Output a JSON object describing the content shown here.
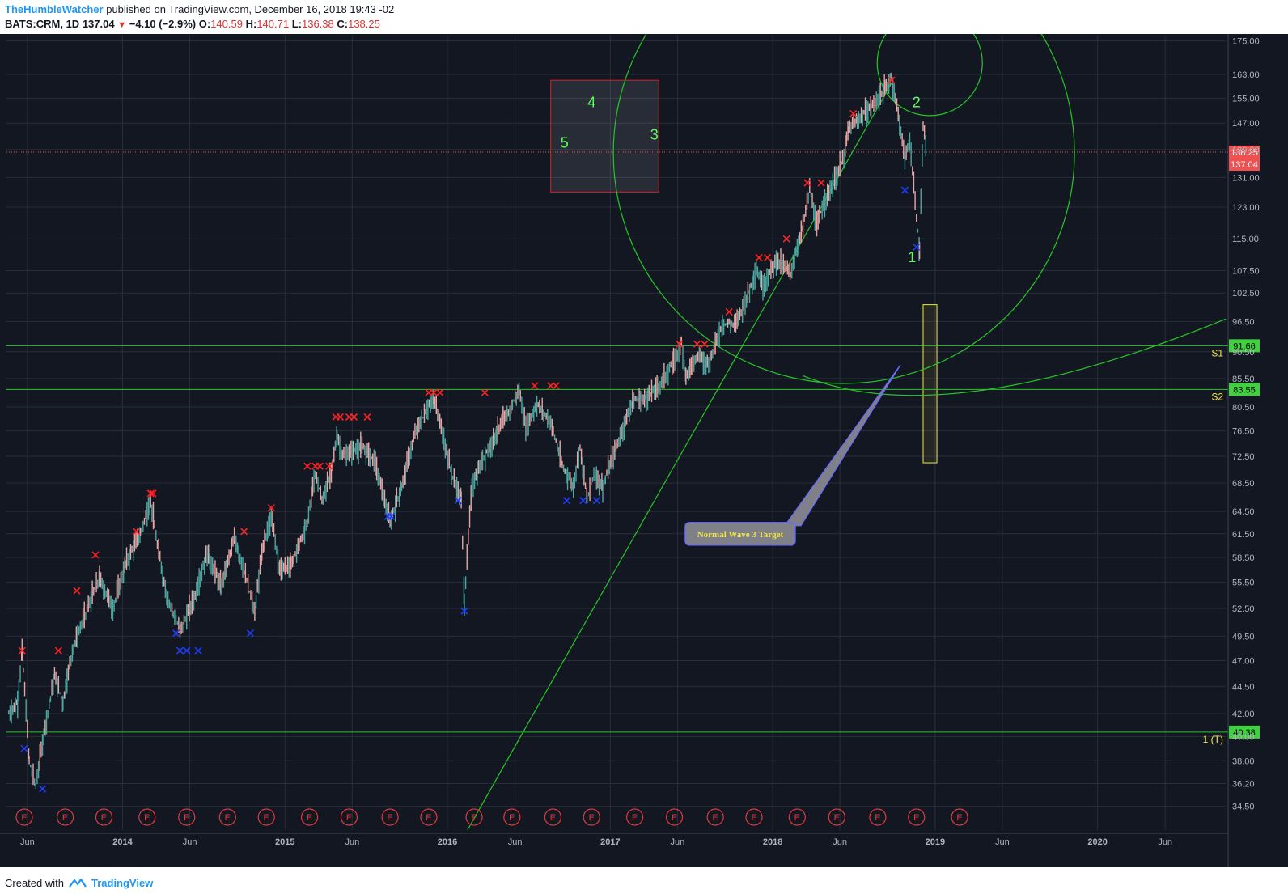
{
  "header": {
    "user": "TheHumbleWatcher",
    "published": "published on TradingView.com, December 16, 2018 19:43 -02",
    "symbol": "BATS:CRM, 1D",
    "last": "137.04",
    "change": "−4.10 (−2.9%)",
    "open_label": "O:",
    "open": "140.59",
    "high_label": "H:",
    "high": "140.71",
    "low_label": "L:",
    "low": "136.38",
    "close_label": "C:",
    "close": "138.25"
  },
  "footer": {
    "created_with": "Created with",
    "brand": "TradingView"
  },
  "colors": {
    "bg": "#131722",
    "grid": "#2a2e39",
    "up": "#4ea6a0",
    "down": "#e6a6a6",
    "green_line": "#26c726",
    "red_x": "#ff2222",
    "blue_x": "#1e3cff",
    "wave_label": "#5dff5d",
    "yellow": "#f0e642",
    "earnings": "#e03a3a",
    "price_tag_red": "#f05050",
    "level_tag_green": "#3fd23f"
  },
  "chart_data": {
    "type": "line",
    "title": "",
    "y_axis": {
      "scale": "log",
      "tick_labels": [
        "175.00",
        "163.00",
        "155.00",
        "147.00",
        "139.00",
        "131.00",
        "123.00",
        "115.00",
        "107.50",
        "102.50",
        "96.50",
        "90.50",
        "85.50",
        "80.50",
        "76.50",
        "72.50",
        "68.50",
        "64.50",
        "61.50",
        "58.50",
        "55.50",
        "52.50",
        "49.50",
        "47.00",
        "44.50",
        "42.00",
        "40.00",
        "38.00",
        "36.20",
        "34.50"
      ],
      "ylim": [
        32.8,
        177
      ]
    },
    "x_axis": {
      "tick_labels": [
        "Jun",
        "2014",
        "Jun",
        "2015",
        "Jun",
        "2016",
        "Jun",
        "2017",
        "Jun",
        "2018",
        "Jun",
        "2019",
        "Jun",
        "2020",
        "Jun"
      ],
      "tick_dates": [
        "2013-06-01",
        "2014-01-01",
        "2014-06-01",
        "2015-01-01",
        "2015-06-01",
        "2016-01-01",
        "2016-06-01",
        "2017-01-01",
        "2017-06-01",
        "2018-01-01",
        "2018-06-01",
        "2019-01-01",
        "2019-06-01",
        "2020-01-01",
        "2020-06-01"
      ],
      "xlim": [
        "2013-04-15",
        "2020-10-15"
      ]
    },
    "series": [
      {
        "kind": "price_path",
        "points": [
          [
            "2013-04-20",
            42.0
          ],
          [
            "2013-05-10",
            43.0
          ],
          [
            "2013-05-20",
            47.8
          ],
          [
            "2013-06-05",
            38.0
          ],
          [
            "2013-06-20",
            36.0
          ],
          [
            "2013-07-05",
            39.5
          ],
          [
            "2013-08-01",
            45.5
          ],
          [
            "2013-08-20",
            43.0
          ],
          [
            "2013-09-10",
            48.0
          ],
          [
            "2013-10-10",
            52.0
          ],
          [
            "2013-11-10",
            56.0
          ],
          [
            "2013-12-10",
            52.5
          ],
          [
            "2014-01-10",
            58.0
          ],
          [
            "2014-02-10",
            61.5
          ],
          [
            "2014-03-05",
            66.0
          ],
          [
            "2014-03-20",
            60.0
          ],
          [
            "2014-04-10",
            54.0
          ],
          [
            "2014-05-10",
            50.0
          ],
          [
            "2014-06-10",
            53.5
          ],
          [
            "2014-07-10",
            59.0
          ],
          [
            "2014-08-10",
            55.0
          ],
          [
            "2014-09-10",
            61.0
          ],
          [
            "2014-10-10",
            55.0
          ],
          [
            "2014-10-25",
            52.0
          ],
          [
            "2014-11-10",
            59.0
          ],
          [
            "2014-12-01",
            64.0
          ],
          [
            "2014-12-20",
            57.0
          ],
          [
            "2015-01-15",
            57.5
          ],
          [
            "2015-02-20",
            63.0
          ],
          [
            "2015-03-10",
            70.0
          ],
          [
            "2015-03-25",
            66.0
          ],
          [
            "2015-04-15",
            70.0
          ],
          [
            "2015-04-28",
            76.0
          ],
          [
            "2015-05-10",
            72.5
          ],
          [
            "2015-06-20",
            74.0
          ],
          [
            "2015-07-20",
            72.0
          ],
          [
            "2015-08-25",
            63.0
          ],
          [
            "2015-09-20",
            68.0
          ],
          [
            "2015-10-20",
            76.0
          ],
          [
            "2015-11-15",
            80.0
          ],
          [
            "2015-12-01",
            82.0
          ],
          [
            "2015-12-15",
            78.0
          ],
          [
            "2016-01-10",
            70.0
          ],
          [
            "2016-02-01",
            66.0
          ],
          [
            "2016-02-08",
            53.0
          ],
          [
            "2016-02-25",
            68.0
          ],
          [
            "2016-03-20",
            72.0
          ],
          [
            "2016-04-20",
            76.0
          ],
          [
            "2016-05-20",
            80.0
          ],
          [
            "2016-06-10",
            83.5
          ],
          [
            "2016-06-25",
            77.0
          ],
          [
            "2016-07-20",
            81.0
          ],
          [
            "2016-08-20",
            78.0
          ],
          [
            "2016-09-15",
            71.0
          ],
          [
            "2016-10-10",
            68.0
          ],
          [
            "2016-10-25",
            74.0
          ],
          [
            "2016-11-10",
            66.0
          ],
          [
            "2016-11-25",
            70.0
          ],
          [
            "2016-12-15",
            68.0
          ],
          [
            "2017-01-20",
            75.0
          ],
          [
            "2017-02-20",
            81.5
          ],
          [
            "2017-03-20",
            82.0
          ],
          [
            "2017-04-20",
            84.0
          ],
          [
            "2017-05-20",
            88.0
          ],
          [
            "2017-06-10",
            92.0
          ],
          [
            "2017-06-20",
            86.0
          ],
          [
            "2017-07-20",
            90.0
          ],
          [
            "2017-08-10",
            88.0
          ],
          [
            "2017-09-10",
            96.0
          ],
          [
            "2017-10-10",
            96.0
          ],
          [
            "2017-11-10",
            103.0
          ],
          [
            "2017-11-25",
            108.0
          ],
          [
            "2017-12-10",
            104.0
          ],
          [
            "2018-01-10",
            110.0
          ],
          [
            "2018-02-10",
            107.0
          ],
          [
            "2018-03-10",
            118.0
          ],
          [
            "2018-03-25",
            128.0
          ],
          [
            "2018-04-10",
            118.0
          ],
          [
            "2018-04-25",
            124.0
          ],
          [
            "2018-05-20",
            130.0
          ],
          [
            "2018-06-10",
            137.0
          ],
          [
            "2018-06-20",
            145.0
          ],
          [
            "2018-07-10",
            148.0
          ],
          [
            "2018-08-10",
            152.0
          ],
          [
            "2018-09-10",
            158.0
          ],
          [
            "2018-09-25",
            162.0
          ],
          [
            "2018-10-10",
            150.0
          ],
          [
            "2018-10-25",
            136.0
          ],
          [
            "2018-11-05",
            142.0
          ],
          [
            "2018-11-20",
            120.0
          ],
          [
            "2018-11-27",
            112.0
          ],
          [
            "2018-12-05",
            146.0
          ],
          [
            "2018-12-14",
            138.25
          ]
        ]
      }
    ],
    "horizontal_levels": [
      {
        "price": 91.66,
        "tag": "91.66",
        "label": "S1"
      },
      {
        "price": 83.55,
        "tag": "83.55",
        "label": "S2"
      },
      {
        "price": 40.38,
        "tag": "40.38",
        "label": "1 (T)"
      }
    ],
    "price_tags": [
      {
        "price": 138.25,
        "tag": "138.25"
      },
      {
        "price": 137.04,
        "tag": "137.04"
      }
    ],
    "trend_line": {
      "from": [
        "2016-02-15",
        32.8
      ],
      "to": [
        "2018-09-25",
        160.0
      ]
    },
    "wave_labels": [
      {
        "text": "4",
        "date": "2016-11-20",
        "price": 152.0
      },
      {
        "text": "5",
        "date": "2016-09-20",
        "price": 139.5
      },
      {
        "text": "3",
        "date": "2017-04-10",
        "price": 142.0
      },
      {
        "text": "2",
        "date": "2018-11-20",
        "price": 152.0
      },
      {
        "text": "1",
        "date": "2018-11-10",
        "price": 109.5
      }
    ],
    "ghost_box": {
      "from": [
        "2016-08-20",
        161.0
      ],
      "to": [
        "2017-04-20",
        127.0
      ]
    },
    "target_box": {
      "from": [
        "2018-12-05",
        100.0
      ],
      "to": [
        "2019-01-05",
        71.5
      ]
    },
    "annotation": {
      "text": "Normal Wave 3 Target",
      "date": "2017-10-20",
      "price": 61.5
    },
    "red_x_markers": [
      [
        "2013-05-20",
        48.0
      ],
      [
        "2013-08-10",
        48.0
      ],
      [
        "2013-09-20",
        54.5
      ],
      [
        "2013-11-01",
        58.8
      ],
      [
        "2014-02-01",
        61.8
      ],
      [
        "2014-03-05",
        67.0
      ],
      [
        "2014-03-10",
        67.0
      ],
      [
        "2014-10-01",
        61.8
      ],
      [
        "2014-12-01",
        65.0
      ],
      [
        "2015-02-20",
        71.0
      ],
      [
        "2015-03-10",
        71.0
      ],
      [
        "2015-03-20",
        71.0
      ],
      [
        "2015-04-10",
        71.0
      ],
      [
        "2015-04-25",
        78.8
      ],
      [
        "2015-05-05",
        78.8
      ],
      [
        "2015-05-25",
        78.8
      ],
      [
        "2015-06-05",
        78.8
      ],
      [
        "2015-07-05",
        78.8
      ],
      [
        "2015-11-20",
        83.0
      ],
      [
        "2015-12-01",
        83.0
      ],
      [
        "2015-12-15",
        83.0
      ],
      [
        "2016-03-25",
        83.0
      ],
      [
        "2016-07-15",
        84.2
      ],
      [
        "2016-08-20",
        84.2
      ],
      [
        "2016-09-01",
        84.2
      ],
      [
        "2017-06-05",
        92.0
      ],
      [
        "2017-07-15",
        92.0
      ],
      [
        "2017-08-01",
        92.0
      ],
      [
        "2017-09-25",
        98.5
      ],
      [
        "2017-12-01",
        110.5
      ],
      [
        "2017-12-20",
        110.5
      ],
      [
        "2018-02-01",
        115.0
      ],
      [
        "2018-03-20",
        129.5
      ],
      [
        "2018-04-20",
        129.5
      ],
      [
        "2018-07-01",
        150.0
      ],
      [
        "2018-09-25",
        161.0
      ]
    ],
    "blue_x_markers": [
      [
        "2013-05-25",
        39.0
      ],
      [
        "2013-07-05",
        35.8
      ],
      [
        "2014-05-01",
        49.8
      ],
      [
        "2014-05-10",
        48.0
      ],
      [
        "2014-05-25",
        48.0
      ],
      [
        "2014-06-20",
        48.0
      ],
      [
        "2014-10-15",
        49.8
      ],
      [
        "2015-08-20",
        63.8
      ],
      [
        "2015-08-28",
        63.8
      ],
      [
        "2016-01-25",
        66.0
      ],
      [
        "2016-02-08",
        52.2
      ],
      [
        "2016-09-25",
        66.0
      ],
      [
        "2016-11-01",
        66.0
      ],
      [
        "2016-12-01",
        66.0
      ],
      [
        "2018-10-25",
        127.5
      ],
      [
        "2018-11-20",
        113.0
      ]
    ],
    "earnings_dates": [
      "2013-05-25",
      "2013-08-25",
      "2013-11-20",
      "2014-02-25",
      "2014-05-25",
      "2014-08-25",
      "2014-11-20",
      "2015-02-25",
      "2015-05-25",
      "2015-08-25",
      "2015-11-20",
      "2016-03-01",
      "2016-05-25",
      "2016-08-25",
      "2016-11-20",
      "2017-02-25",
      "2017-05-25",
      "2017-08-25",
      "2017-11-20",
      "2018-02-25",
      "2018-05-25",
      "2018-08-25",
      "2018-11-20",
      "2019-02-25"
    ],
    "earnings_label": "E",
    "grid": true,
    "legend": "none"
  }
}
